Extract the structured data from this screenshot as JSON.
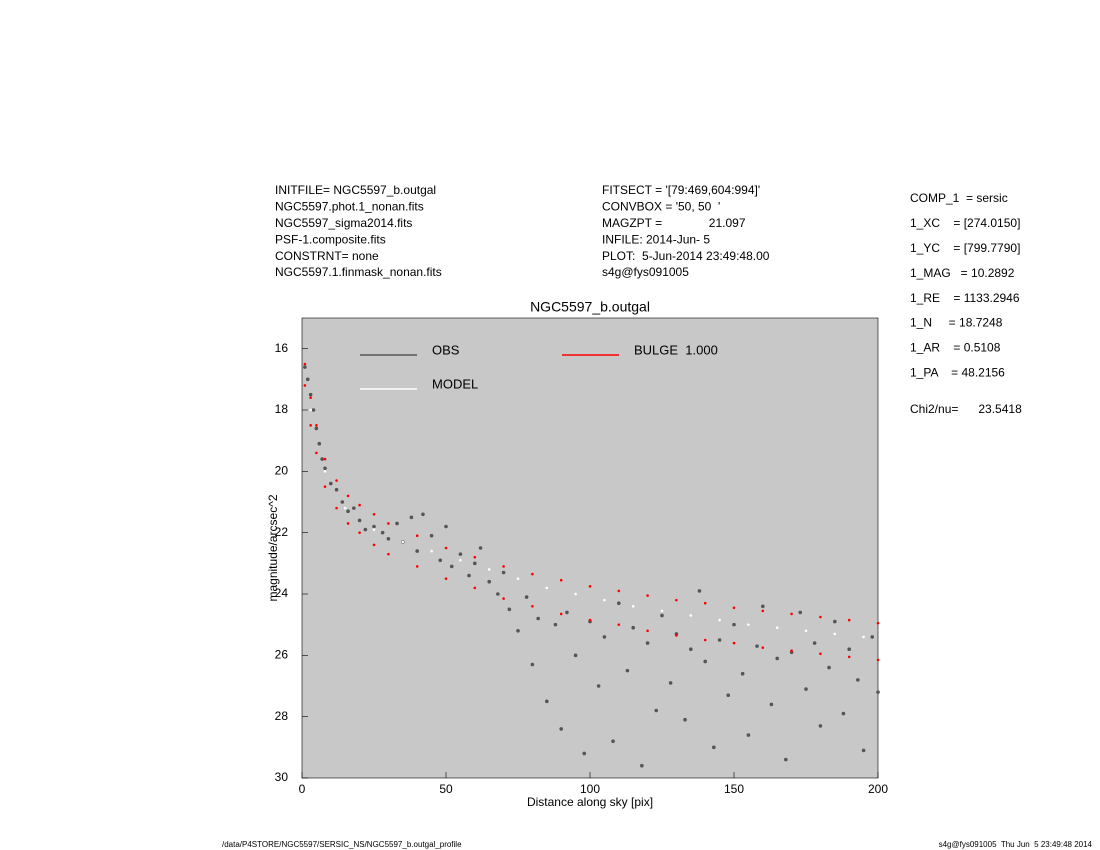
{
  "header": {
    "left": [
      "INITFILE= NGC5597_b.outgal",
      "NGC5597.phot.1_nonan.fits",
      "NGC5597_sigma2014.fits",
      "PSF-1.composite.fits",
      "CONSTRNT= none",
      "NGC5597.1.finmask_nonan.fits"
    ],
    "middle": [
      "FITSECT = '[79:469,604:994]'",
      "CONVBOX = '50, 50  '",
      "MAGZPT =              21.097",
      "INFILE: 2014-Jun- 5",
      "PLOT:  5-Jun-2014 23:49:48.00",
      "s4g@fys091005"
    ],
    "components": [
      "COMP_1  = sersic",
      "1_XC    = [274.0150]",
      "1_YC    = [799.7790]",
      "1_MAG   = 10.2892",
      "1_RE    = 1133.2946",
      "1_N     = 18.7248",
      "1_AR    = 0.5108",
      "1_PA    = 48.2156"
    ],
    "chi": "Chi2/nu=      23.5418"
  },
  "footer": {
    "left": "/data/P4STORE/NGC5597/SERSIC_NS/NGC5597_b.outgal_profile",
    "right": "s4g@fys091005  Thu Jun  5 23:49:48 2014"
  },
  "chart_data": {
    "type": "scatter",
    "title": "NGC5597_b.outgal",
    "xlabel": "Distance along sky [pix]",
    "ylabel": "magnitude/arcsec^2",
    "xlim": [
      0,
      200
    ],
    "ylim": [
      15,
      30
    ],
    "y_inverted": true,
    "xticks": [
      0,
      50,
      100,
      150,
      200
    ],
    "yticks": [
      16,
      18,
      20,
      22,
      24,
      26,
      28,
      30
    ],
    "background": "#c8c8c8",
    "series": [
      {
        "name": "OBS",
        "color": "#555555",
        "x": [
          1,
          2,
          3,
          4,
          5,
          6,
          7,
          8,
          10,
          12,
          14,
          16,
          18,
          20,
          22,
          25,
          28,
          30,
          33,
          35,
          38,
          40,
          42,
          45,
          48,
          50,
          52,
          55,
          58,
          60,
          62,
          65,
          68,
          70,
          72,
          75,
          78,
          80,
          82,
          85,
          88,
          90,
          92,
          95,
          98,
          100,
          103,
          105,
          108,
          110,
          113,
          115,
          118,
          120,
          123,
          125,
          128,
          130,
          133,
          135,
          138,
          140,
          143,
          145,
          148,
          150,
          153,
          155,
          158,
          160,
          163,
          165,
          168,
          170,
          173,
          175,
          178,
          180,
          183,
          185,
          188,
          190,
          193,
          195,
          198,
          200
        ],
        "values": [
          16.6,
          17.0,
          17.5,
          18.0,
          18.6,
          19.1,
          19.6,
          19.9,
          20.4,
          20.6,
          21.0,
          21.3,
          21.2,
          21.6,
          21.9,
          21.8,
          22.0,
          22.2,
          21.7,
          22.3,
          21.5,
          22.6,
          21.4,
          22.1,
          22.9,
          21.8,
          23.1,
          22.7,
          23.4,
          23.0,
          22.5,
          23.6,
          24.0,
          23.3,
          24.5,
          25.2,
          24.1,
          26.3,
          24.8,
          27.5,
          25.0,
          28.4,
          24.6,
          26.0,
          29.2,
          24.9,
          27.0,
          25.4,
          28.8,
          24.3,
          26.5,
          25.1,
          29.6,
          25.6,
          27.8,
          24.7,
          26.9,
          25.3,
          28.1,
          25.8,
          23.9,
          26.2,
          29.0,
          25.5,
          27.3,
          25.0,
          26.6,
          28.6,
          25.7,
          24.4,
          27.6,
          26.1,
          29.4,
          25.9,
          24.6,
          27.1,
          25.6,
          28.3,
          26.4,
          24.9,
          27.9,
          25.8,
          26.8,
          29.1,
          25.4,
          27.2
        ]
      },
      {
        "name": "MODEL",
        "color": "#ffffff",
        "x": [
          3,
          8,
          15,
          25,
          35,
          45,
          55,
          65,
          75,
          85,
          95,
          105,
          115,
          125,
          135,
          145,
          155,
          165,
          175,
          185,
          195
        ],
        "values": [
          18.0,
          20.0,
          21.2,
          21.9,
          22.3,
          22.6,
          22.9,
          23.2,
          23.5,
          23.8,
          24.0,
          24.2,
          24.4,
          24.55,
          24.7,
          24.85,
          25.0,
          25.1,
          25.2,
          25.3,
          25.4
        ]
      },
      {
        "name": "BULGE  1.000",
        "color": "#ff0000",
        "x": [
          1,
          3,
          5,
          8,
          12,
          16,
          20,
          25,
          30,
          40,
          50,
          60,
          70,
          80,
          90,
          100,
          110,
          120,
          130,
          140,
          150,
          160,
          170,
          180,
          190,
          200,
          1,
          3,
          5,
          8,
          12,
          16,
          20,
          25,
          30,
          40,
          50,
          60,
          70,
          80,
          90,
          100,
          110,
          120,
          130,
          140,
          150,
          160,
          170,
          180,
          190,
          200
        ],
        "values": [
          16.5,
          17.6,
          18.5,
          19.6,
          20.3,
          20.8,
          21.1,
          21.4,
          21.7,
          22.1,
          22.5,
          22.8,
          23.1,
          23.35,
          23.55,
          23.75,
          23.9,
          24.05,
          24.2,
          24.3,
          24.45,
          24.55,
          24.65,
          24.75,
          24.85,
          24.95,
          17.2,
          18.5,
          19.4,
          20.5,
          21.2,
          21.7,
          22.0,
          22.4,
          22.7,
          23.1,
          23.5,
          23.8,
          24.15,
          24.4,
          24.65,
          24.85,
          25.0,
          25.2,
          25.35,
          25.5,
          25.6,
          25.75,
          25.85,
          25.95,
          26.05,
          26.15
        ]
      }
    ]
  }
}
